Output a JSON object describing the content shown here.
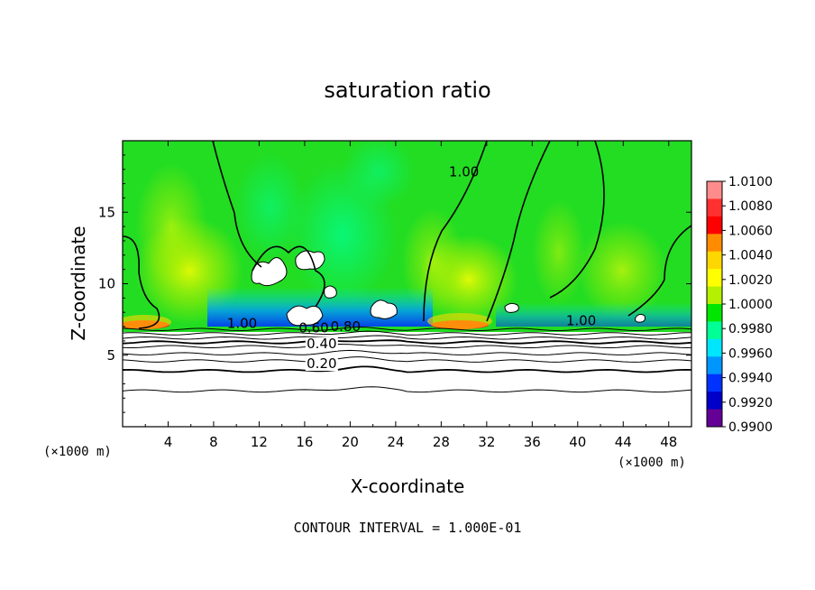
{
  "chart_data": {
    "type": "heatmap",
    "title": "saturation ratio",
    "xlabel": "X-coordinate",
    "ylabel": "Z-coordinate",
    "x_unit": "(×1000 m)",
    "z_unit": "(×1000 m)",
    "xlim": [
      0,
      50
    ],
    "ylim": [
      0,
      20
    ],
    "x_ticks": [
      4,
      8,
      12,
      16,
      20,
      24,
      28,
      32,
      36,
      40,
      44,
      48
    ],
    "y_ticks": [
      5,
      10,
      15
    ],
    "colorbar": {
      "range": [
        0.99,
        1.01
      ],
      "labels": [
        "1.0100",
        "1.0080",
        "1.0060",
        "1.0040",
        "1.0020",
        "1.0000",
        "0.9980",
        "0.9960",
        "0.9940",
        "0.9920",
        "0.9900"
      ],
      "colors": [
        "#ff8c8c",
        "#ff3030",
        "#ff0000",
        "#ff8c00",
        "#ffd700",
        "#ffff00",
        "#b4f000",
        "#00e600",
        "#00ff96",
        "#00e6ff",
        "#0096ff",
        "#0032ff",
        "#0000c8",
        "#640096"
      ]
    },
    "contour_labels": [
      {
        "text": "1.00",
        "x": 10.5,
        "z": 6.9
      },
      {
        "text": "1.00",
        "x": 30.0,
        "z": 17.5
      },
      {
        "text": "1.00",
        "x": 40.3,
        "z": 7.1
      },
      {
        "text": "0.60",
        "x": 16.8,
        "z": 6.6
      },
      {
        "text": "0.80",
        "x": 19.6,
        "z": 6.7
      },
      {
        "text": "0.40",
        "x": 17.5,
        "z": 5.5
      },
      {
        "text": "0.20",
        "x": 17.5,
        "z": 4.1
      }
    ],
    "contour_levels_z": [
      2.5,
      3.9,
      4.6,
      5.1,
      5.6,
      5.9,
      6.2,
      6.5,
      6.8
    ],
    "footnote": "CONTOUR INTERVAL = 1.000E-01"
  }
}
